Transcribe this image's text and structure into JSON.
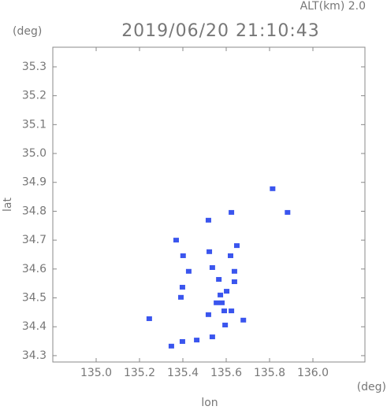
{
  "chart_data": {
    "type": "scatter",
    "title": "2019/06/20 21:10:43",
    "subtitle": "ALT(km) 2.0",
    "x_label": "lon",
    "y_label": "lat",
    "x_unit": "(deg)",
    "y_unit": "(deg)",
    "color": "#3a55ee",
    "x": [
      135.814,
      135.245,
      135.347,
      135.398,
      135.464,
      135.536,
      135.401,
      135.427,
      135.391,
      135.398,
      135.566,
      135.573,
      135.555,
      135.602,
      135.591,
      135.536,
      135.638,
      135.649,
      135.62,
      135.518,
      135.624,
      135.679,
      135.595,
      135.522,
      135.624,
      135.518,
      135.369,
      135.883,
      135.638,
      135.58
    ],
    "values": [
      34.878,
      34.428,
      34.333,
      34.349,
      34.354,
      34.365,
      34.646,
      34.592,
      34.502,
      34.537,
      34.564,
      34.51,
      34.483,
      34.523,
      34.455,
      34.605,
      34.592,
      34.681,
      34.646,
      34.442,
      34.455,
      34.423,
      34.406,
      34.66,
      34.796,
      34.769,
      34.7,
      34.796,
      34.556,
      34.483
    ],
    "xlim": [
      134.8,
      136.24
    ],
    "ylim": [
      34.278,
      35.368
    ],
    "xticks": [
      {
        "value": 135.0,
        "label": "135.0"
      },
      135.2,
      135.4,
      135.6,
      135.8,
      {
        "value": 136.0,
        "label": "136.0"
      }
    ],
    "yticks": [
      34.3,
      34.4,
      34.5,
      34.6,
      34.7,
      34.8,
      34.9,
      {
        "value": 35.0,
        "label": "35.0"
      },
      35.1,
      35.2,
      35.3
    ]
  }
}
